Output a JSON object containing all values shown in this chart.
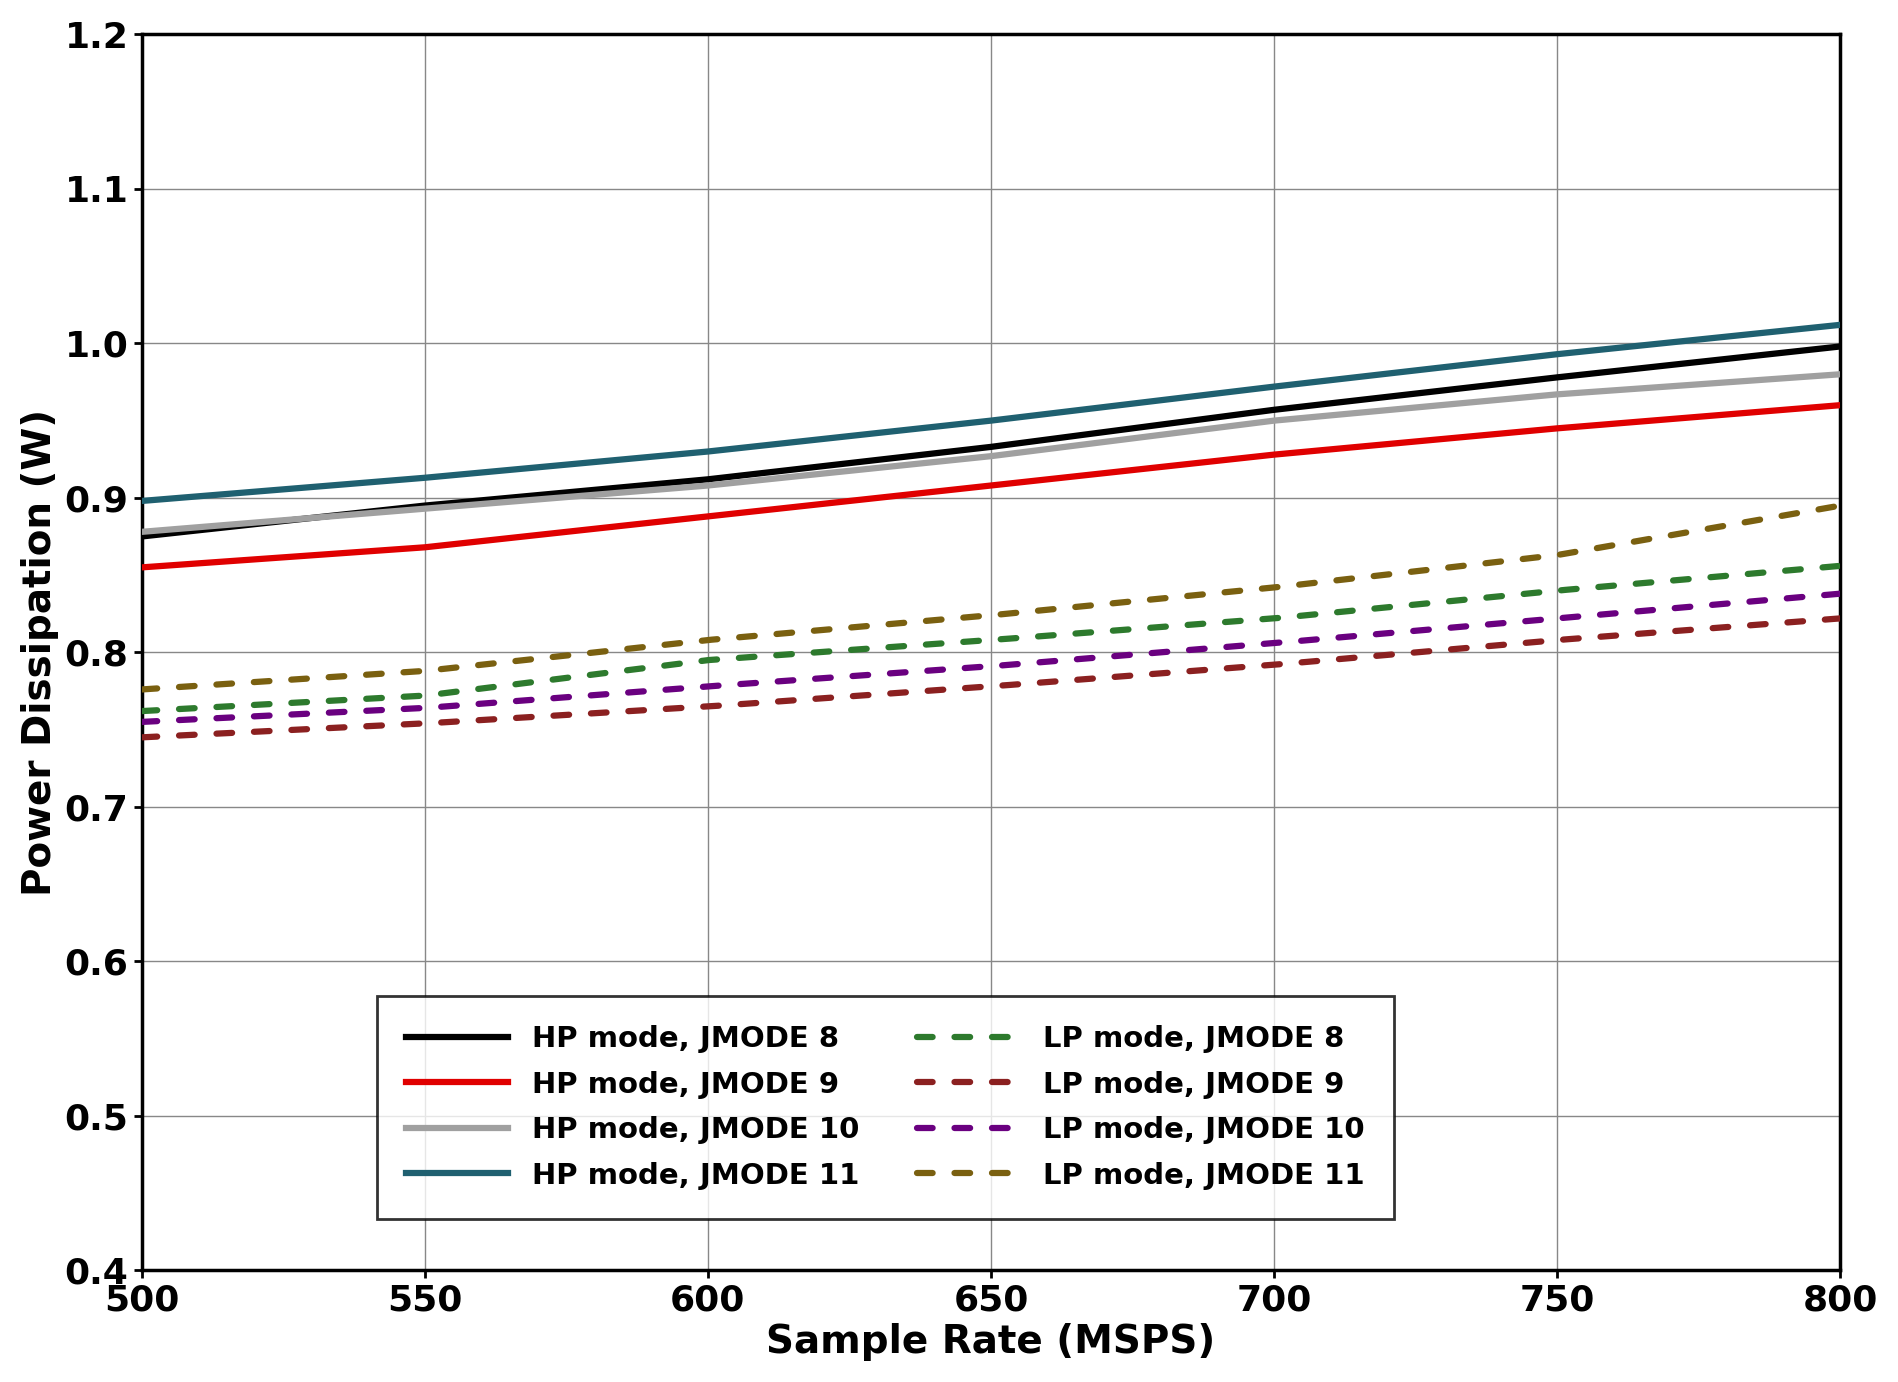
{
  "title": "",
  "xlabel": "Sample Rate (MSPS)",
  "ylabel": "Power Dissipation (W)",
  "xlim": [
    500,
    800
  ],
  "ylim": [
    0.4,
    1.2
  ],
  "xticks": [
    500,
    550,
    600,
    650,
    700,
    750,
    800
  ],
  "yticks": [
    0.4,
    0.5,
    0.6,
    0.7,
    0.8,
    0.9,
    1.0,
    1.1,
    1.2
  ],
  "x": [
    500,
    550,
    600,
    650,
    700,
    750,
    800
  ],
  "hp_jmode8": [
    0.875,
    0.895,
    0.912,
    0.933,
    0.957,
    0.978,
    0.998
  ],
  "hp_jmode9": [
    0.855,
    0.868,
    0.888,
    0.908,
    0.928,
    0.945,
    0.96
  ],
  "hp_jmode10": [
    0.878,
    0.893,
    0.908,
    0.927,
    0.95,
    0.967,
    0.98
  ],
  "hp_jmode11": [
    0.898,
    0.913,
    0.93,
    0.95,
    0.972,
    0.993,
    1.012
  ],
  "lp_jmode8": [
    0.762,
    0.772,
    0.795,
    0.808,
    0.822,
    0.84,
    0.856
  ],
  "lp_jmode9": [
    0.745,
    0.754,
    0.765,
    0.778,
    0.792,
    0.808,
    0.822
  ],
  "lp_jmode10": [
    0.755,
    0.764,
    0.778,
    0.791,
    0.806,
    0.822,
    0.838
  ],
  "lp_jmode11": [
    0.776,
    0.788,
    0.808,
    0.824,
    0.842,
    0.863,
    0.895
  ],
  "color_jmode8": "#000000",
  "color_jmode9": "#e00000",
  "color_jmode10": "#a0a0a0",
  "color_jmode11": "#1f6070",
  "lp_color_jmode8": "#2d7a2d",
  "lp_color_jmode9": "#8b2020",
  "lp_color_jmode10": "#6a0080",
  "lp_color_jmode11": "#7a6010",
  "tick_fontsize": 26,
  "label_fontsize": 28,
  "legend_fontsize": 21
}
